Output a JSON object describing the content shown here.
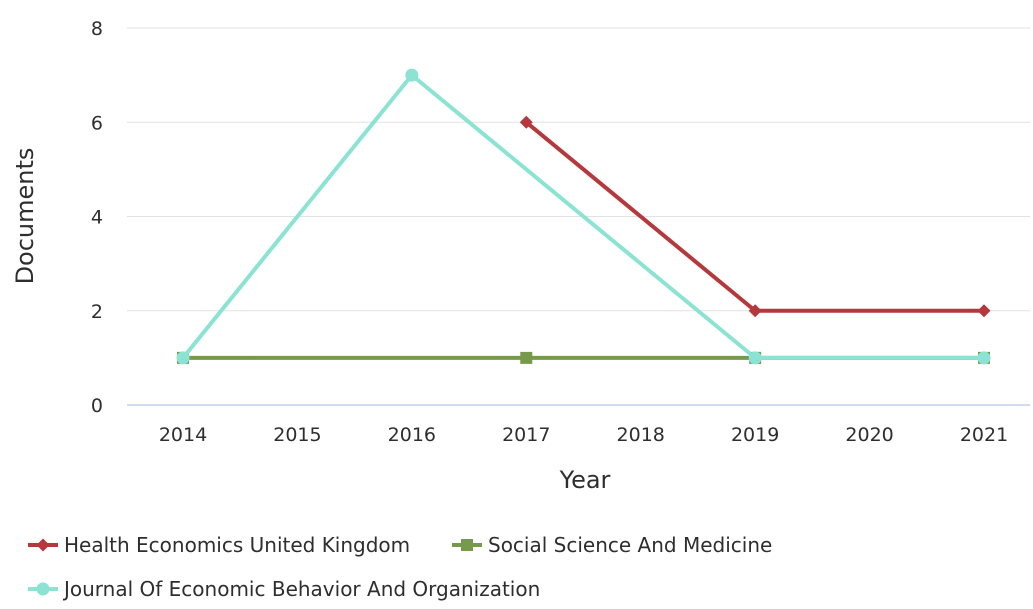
{
  "chart_data": {
    "type": "line",
    "title": "",
    "xlabel": "Year",
    "ylabel": "Documents",
    "x": [
      2014,
      2015,
      2016,
      2017,
      2018,
      2019,
      2020,
      2021
    ],
    "x_tick_labels": [
      "2014",
      "2015",
      "2016",
      "2017",
      "2018",
      "2019",
      "2020",
      "2021"
    ],
    "ylim": [
      0,
      8
    ],
    "y_ticks": [
      0,
      2,
      4,
      6,
      8
    ],
    "y_tick_labels": [
      "0",
      "2",
      "4",
      "6",
      "8"
    ],
    "grid": "horizontal",
    "legend_position": "bottom-left",
    "series": [
      {
        "name": "Health Economics United Kingdom",
        "color": "#b5383c",
        "marker": "diamond",
        "points": [
          {
            "x": 2017,
            "y": 6
          },
          {
            "x": 2019,
            "y": 2
          },
          {
            "x": 2021,
            "y": 2
          }
        ]
      },
      {
        "name": "Social Science And Medicine",
        "color": "#76994a",
        "marker": "square",
        "points": [
          {
            "x": 2014,
            "y": 1
          },
          {
            "x": 2017,
            "y": 1
          },
          {
            "x": 2019,
            "y": 1
          },
          {
            "x": 2021,
            "y": 1
          }
        ]
      },
      {
        "name": "Journal Of Economic Behavior And Organization",
        "color": "#8ae3d3",
        "marker": "circle",
        "points": [
          {
            "x": 2014,
            "y": 1
          },
          {
            "x": 2016,
            "y": 7
          },
          {
            "x": 2019,
            "y": 1
          },
          {
            "x": 2021,
            "y": 1
          }
        ]
      }
    ]
  }
}
